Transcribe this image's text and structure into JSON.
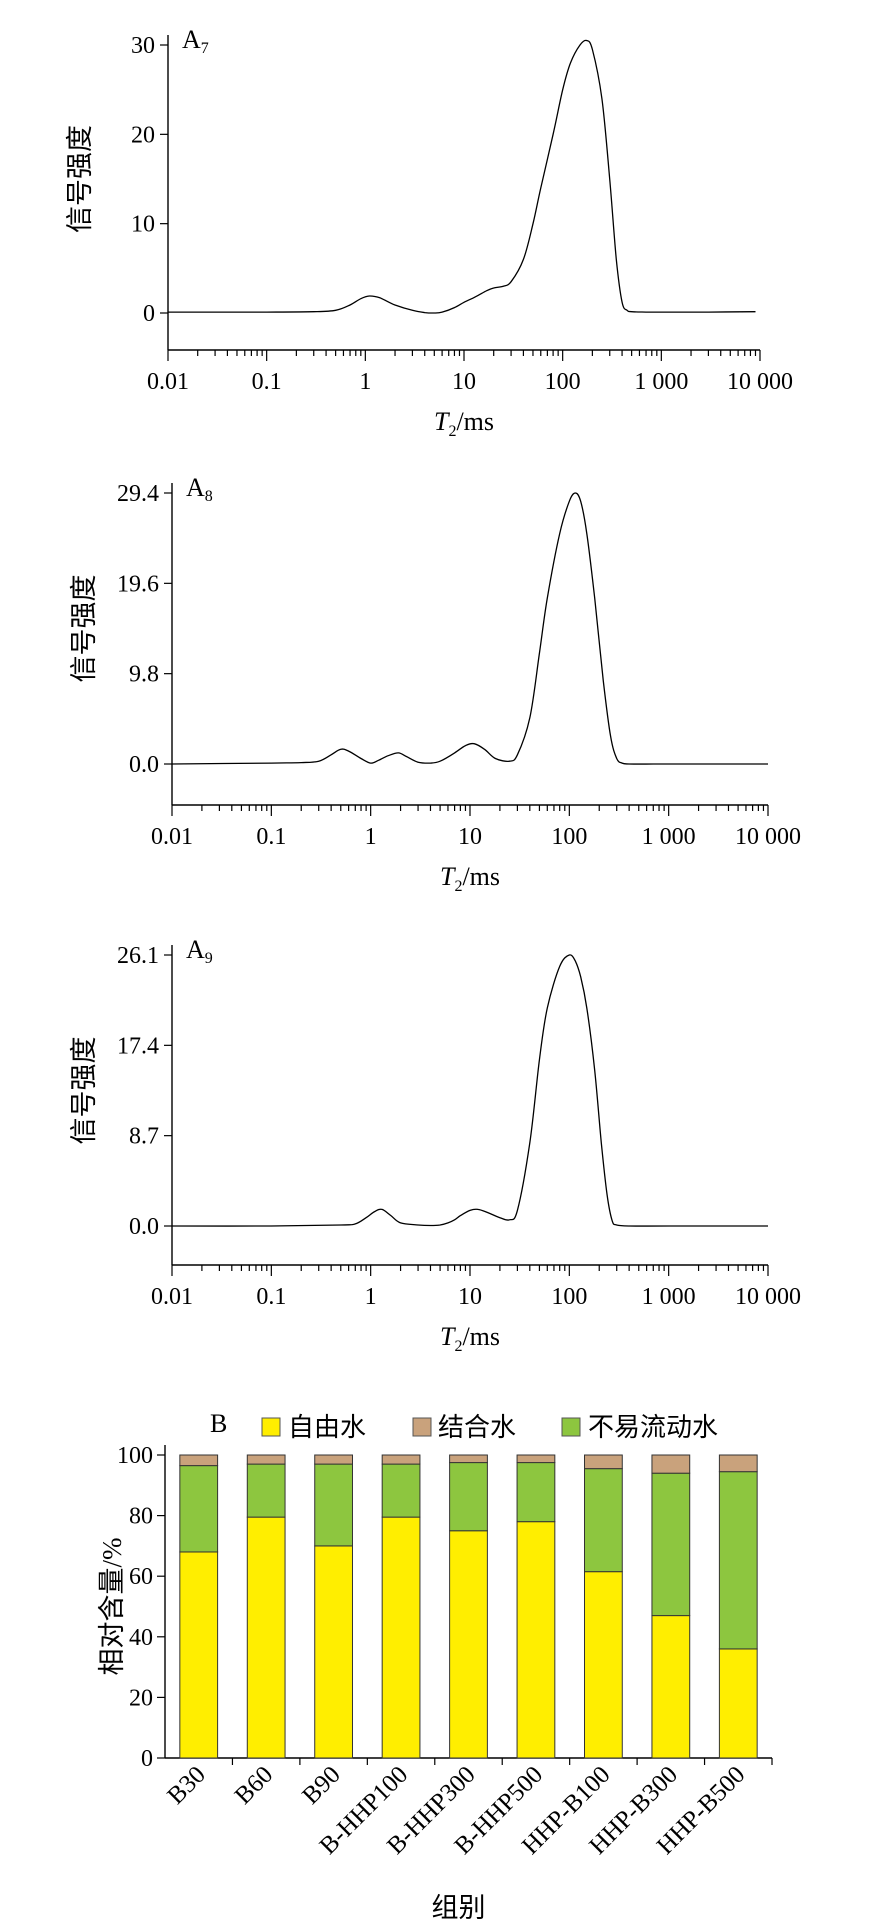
{
  "chart_data": [
    {
      "type": "line",
      "panel_label": "A",
      "panel_sub": "7",
      "xlabel_main": "T",
      "xlabel_sub": "2",
      "xlabel_unit": "/ms",
      "ylabel": "信号强度",
      "x_scale": "log",
      "xlim": [
        0.01,
        10000
      ],
      "x_tick_values": [
        0.01,
        0.1,
        1,
        10,
        100,
        1000,
        10000
      ],
      "x_tick_labels": [
        "0.01",
        "0.1",
        "1",
        "10",
        "100",
        "1 000",
        "10 000"
      ],
      "ylim": [
        -4.5,
        30.5
      ],
      "y_tick_values": [
        0,
        10,
        20,
        30
      ],
      "y_tick_labels": [
        "0",
        "10",
        "20",
        "30"
      ],
      "series": [
        {
          "x": [
            0.01,
            0.1,
            0.3,
            0.5,
            0.7,
            0.9,
            1.1,
            1.4,
            2,
            3,
            4,
            5,
            6,
            8,
            10,
            13,
            17,
            20,
            25,
            30,
            40,
            50,
            60,
            80,
            100,
            120,
            150,
            175,
            200,
            250,
            300,
            350,
            400,
            450,
            500,
            700,
            1000,
            3000,
            9000
          ],
          "y": [
            0.1,
            0.1,
            0.15,
            0.3,
            0.9,
            1.6,
            1.9,
            1.7,
            0.9,
            0.3,
            0.05,
            0,
            0.1,
            0.6,
            1.2,
            1.8,
            2.5,
            2.8,
            3,
            3.5,
            6,
            10,
            14,
            20,
            25,
            28,
            30,
            30.5,
            29.5,
            24,
            15,
            6,
            1.2,
            0.3,
            0.15,
            0.1,
            0.1,
            0.1,
            0.15
          ]
        }
      ]
    },
    {
      "type": "line",
      "panel_label": "A",
      "panel_sub": "8",
      "xlabel_main": "T",
      "xlabel_sub": "2",
      "xlabel_unit": "/ms",
      "ylabel": "信号强度",
      "x_scale": "log",
      "xlim": [
        0.01,
        10000
      ],
      "x_tick_values": [
        0.01,
        0.1,
        1,
        10,
        100,
        1000,
        10000
      ],
      "x_tick_labels": [
        "0.01",
        "0.1",
        "1",
        "10",
        "100",
        "1 000",
        "10 000"
      ],
      "ylim": [
        -4.2,
        29.4
      ],
      "y_tick_values": [
        0,
        9.8,
        19.6,
        29.4
      ],
      "y_tick_labels": [
        "0.0",
        "9.8",
        "19.6",
        "29.4"
      ],
      "series": [
        {
          "x": [
            0.01,
            0.1,
            0.2,
            0.3,
            0.4,
            0.5,
            0.6,
            0.8,
            1,
            1.2,
            1.5,
            1.9,
            2.3,
            3,
            4,
            5,
            7,
            9,
            11,
            14,
            18,
            25,
            30,
            40,
            50,
            60,
            80,
            100,
            115,
            130,
            150,
            180,
            220,
            260,
            300,
            340,
            400,
            700,
            1000,
            10000
          ],
          "y": [
            0,
            0.1,
            0.15,
            0.3,
            1,
            1.6,
            1.4,
            0.6,
            0.1,
            0.4,
            0.9,
            1.2,
            0.8,
            0.2,
            0.1,
            0.3,
            1.2,
            2,
            2.2,
            1.6,
            0.6,
            0.3,
            1,
            5,
            12,
            18,
            25,
            28.5,
            29.4,
            28.5,
            25,
            18,
            9,
            3,
            0.6,
            0.1,
            0,
            0,
            0,
            0
          ]
        }
      ]
    },
    {
      "type": "line",
      "panel_label": "A",
      "panel_sub": "9",
      "xlabel_main": "T",
      "xlabel_sub": "2",
      "xlabel_unit": "/ms",
      "ylabel": "信号强度",
      "x_scale": "log",
      "xlim": [
        0.01,
        10000
      ],
      "x_tick_values": [
        0.01,
        0.1,
        1,
        10,
        100,
        1000,
        10000
      ],
      "x_tick_labels": [
        "0.01",
        "0.1",
        "1",
        "10",
        "100",
        "1 000",
        "10 000"
      ],
      "ylim": [
        -3.8,
        26.1
      ],
      "y_tick_values": [
        0,
        8.7,
        17.4,
        26.1
      ],
      "y_tick_labels": [
        "0.0",
        "8.7",
        "17.4",
        "26.1"
      ],
      "series": [
        {
          "x": [
            0.01,
            0.1,
            0.5,
            0.7,
            0.9,
            1.1,
            1.3,
            1.6,
            2,
            3,
            4,
            5,
            6,
            7,
            8,
            10,
            12,
            15,
            20,
            25,
            30,
            40,
            50,
            60,
            80,
            100,
            115,
            130,
            150,
            180,
            210,
            240,
            270,
            300,
            400,
            1000,
            10000
          ],
          "y": [
            0,
            0,
            0.1,
            0.2,
            0.8,
            1.4,
            1.6,
            1,
            0.3,
            0.1,
            0.05,
            0.1,
            0.3,
            0.6,
            1,
            1.5,
            1.6,
            1.3,
            0.8,
            0.6,
            1.5,
            8,
            16,
            21,
            25,
            26.1,
            25.5,
            24,
            21,
            15,
            8,
            3,
            0.5,
            0.1,
            0,
            0,
            0
          ]
        }
      ]
    },
    {
      "type": "stacked_bar",
      "panel_label": "B",
      "xlabel": "组别",
      "ylabel": "相对含量/%",
      "ylim": [
        0,
        100
      ],
      "y_tick_values": [
        0,
        20,
        40,
        60,
        80,
        100
      ],
      "y_tick_labels": [
        "0",
        "20",
        "40",
        "60",
        "80",
        "100"
      ],
      "legend_position": "top",
      "categories": [
        "B30",
        "B60",
        "B90",
        "B-HHP100",
        "B-HHP300",
        "B-HHP500",
        "HHP-B100",
        "HHP-B300",
        "HHP-B500"
      ],
      "series": [
        {
          "name": "自由水",
          "color": "#ffee00",
          "values": [
            68,
            79.5,
            70,
            79.5,
            75,
            78,
            61.5,
            47,
            36
          ]
        },
        {
          "name": "不易流动水",
          "color": "#8dc63f",
          "values": [
            28.5,
            17.5,
            27,
            17.5,
            22.5,
            19.5,
            34,
            47,
            58.5
          ]
        },
        {
          "name": "结合水",
          "color": "#c9a27c",
          "values": [
            3.5,
            3,
            3,
            3,
            2.5,
            2.5,
            4.5,
            6,
            5.5
          ]
        }
      ],
      "legend_order": [
        "自由水",
        "结合水",
        "不易流动水"
      ]
    }
  ]
}
